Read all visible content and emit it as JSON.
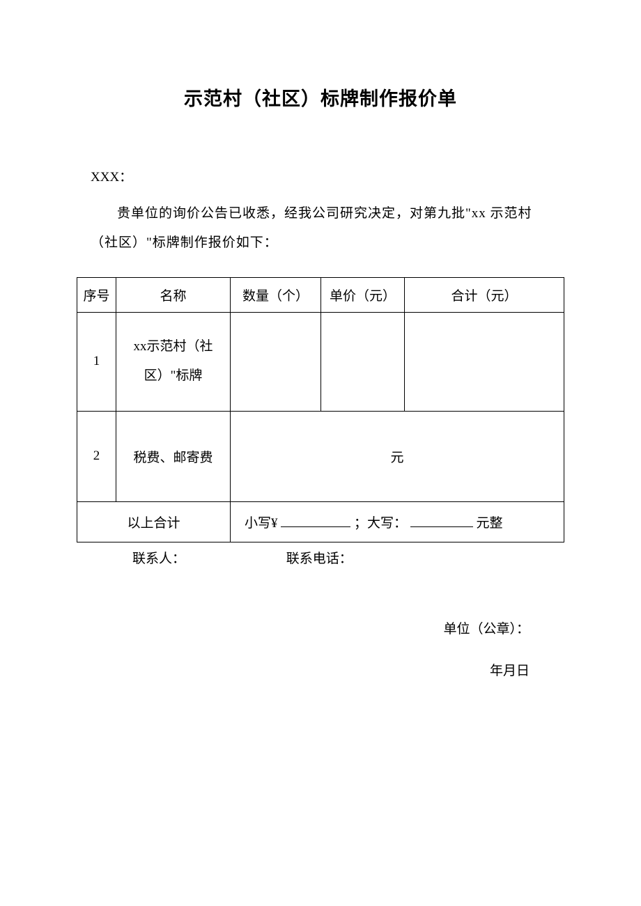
{
  "title": "示范村（社区）标牌制作报价单",
  "addressee": "XXX：",
  "body": "贵单位的询价公告已收悉，经我公司研究决定，对第九批\"xx 示范村（社区）\"标牌制作报价如下：",
  "table": {
    "headers": {
      "seq": "序号",
      "name": "名称",
      "qty": "数量（个）",
      "price": "单价（元）",
      "total": "合计（元）"
    },
    "row1": {
      "seq": "1",
      "name": "xx示范村（社区）\"标牌",
      "qty": "",
      "price": "",
      "total": ""
    },
    "row2": {
      "seq": "2",
      "name": "税费、邮寄费",
      "merged_suffix": "元"
    },
    "total": {
      "label": "以上合计",
      "prefix": "小写¥",
      "middle": "；大写：",
      "suffix": "元整"
    }
  },
  "contact": {
    "person_label": "联系人：",
    "phone_label": "联系电话："
  },
  "signature": {
    "seal": "单位（公章）：",
    "date": "年月日"
  }
}
